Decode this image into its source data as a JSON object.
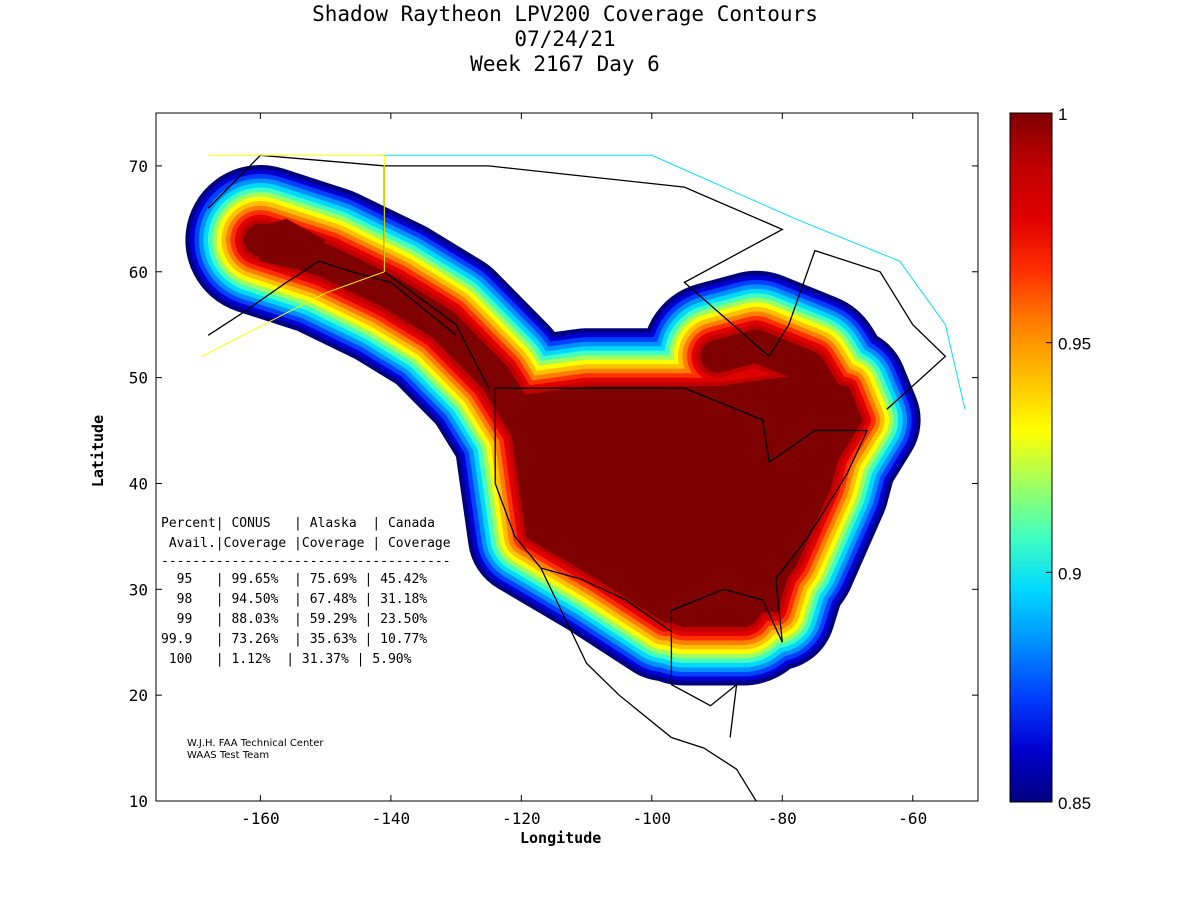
{
  "title": {
    "line1": "Shadow Raytheon LPV200 Coverage Contours",
    "line2": "07/24/21",
    "line3": "Week 2167 Day 6"
  },
  "chart_data": {
    "type": "heatmap",
    "xlabel": "Longitude",
    "ylabel": "Latitude",
    "xlim": [
      -176,
      -50
    ],
    "ylim": [
      10,
      75
    ],
    "xticks": [
      -160,
      -140,
      -120,
      -100,
      -80,
      -60
    ],
    "yticks": [
      10,
      20,
      30,
      40,
      50,
      60,
      70
    ],
    "colorbar": {
      "range": [
        0.85,
        1
      ],
      "ticks": [
        "1",
        "0.95",
        "0.9",
        "0.85"
      ]
    },
    "colors": [
      "#00007f",
      "#0000d0",
      "#0040ff",
      "#0090ff",
      "#00d8ff",
      "#40ffc0",
      "#a0ff60",
      "#ffff00",
      "#ffc000",
      "#ff8000",
      "#ff3000",
      "#e00000",
      "#c00000",
      "#7f0000"
    ]
  },
  "table": {
    "header1": "Percent| CONUS   | Alaska  | Canada",
    "header2": " Avail.|Coverage |Coverage | Coverage",
    "divider": "-------------------------------------",
    "rows": [
      "  95   | 99.65%  | 75.69% | 45.42%",
      "  98   | 94.50%  | 67.48% | 31.18%",
      "  99   | 88.03%  | 59.29% | 23.50%",
      "99.9   | 73.26%  | 35.63% | 10.77%",
      " 100   | 1.12%  | 31.37% | 5.90%"
    ]
  },
  "credit": {
    "line1": "W.J.H. FAA Technical Center",
    "line2": "WAAS Test Team"
  }
}
